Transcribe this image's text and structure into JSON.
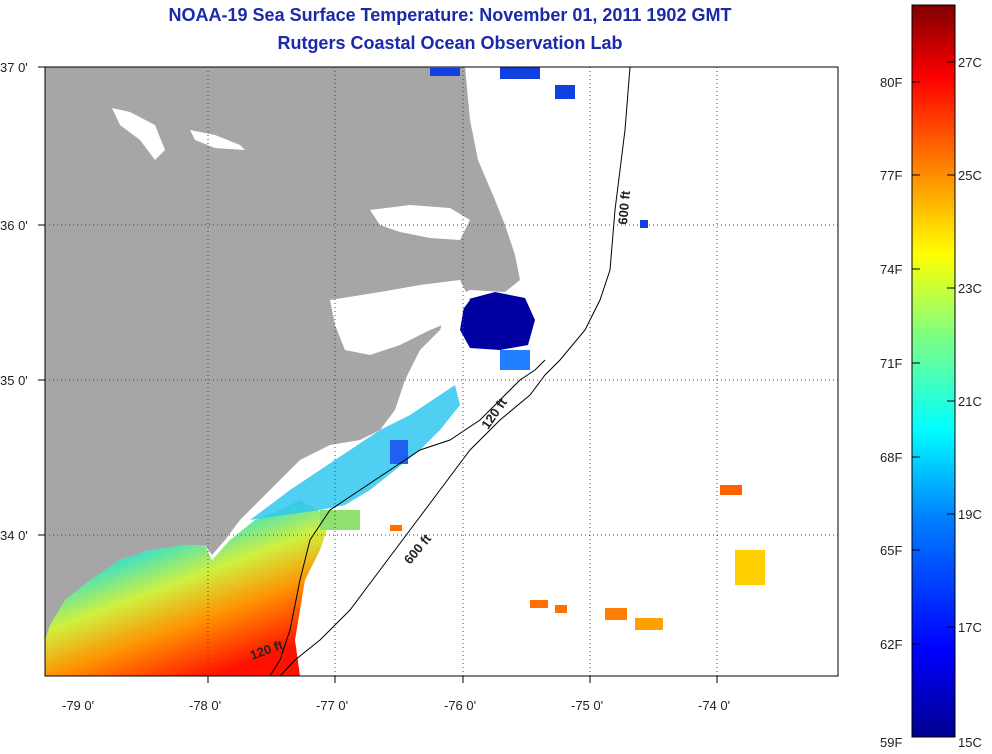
{
  "header": {
    "title": "NOAA-19 Sea Surface Temperature:  November 01, 2011 1902 GMT",
    "subtitle": "Rutgers Coastal Ocean Observation Lab"
  },
  "map": {
    "lat_labels": [
      "37 0'",
      "36 0'",
      "35 0'",
      "34 0'"
    ],
    "lon_labels": [
      "-79 0'",
      "-78 0'",
      "-77 0'",
      "-76 0'",
      "-75 0'",
      "-74 0'"
    ],
    "contour_labels": [
      "600 ft",
      "120 ft",
      "600 ft",
      "120 ft"
    ],
    "colors": {
      "land": "#a6a6a6",
      "cloud_mask": "#ffffff",
      "bathymetry": "#000000"
    }
  },
  "colorbar": {
    "f_labels": [
      "80F",
      "77F",
      "74F",
      "71F",
      "68F",
      "65F",
      "62F",
      "59F"
    ],
    "c_labels": [
      "27C",
      "25C",
      "23C",
      "21C",
      "19C",
      "17C",
      "15C"
    ],
    "range_c": [
      15,
      28
    ],
    "colors": [
      "#00008f",
      "#0000ff",
      "#0080ff",
      "#00ffff",
      "#80ff80",
      "#ffff00",
      "#ff8000",
      "#ff0000",
      "#800000"
    ]
  }
}
